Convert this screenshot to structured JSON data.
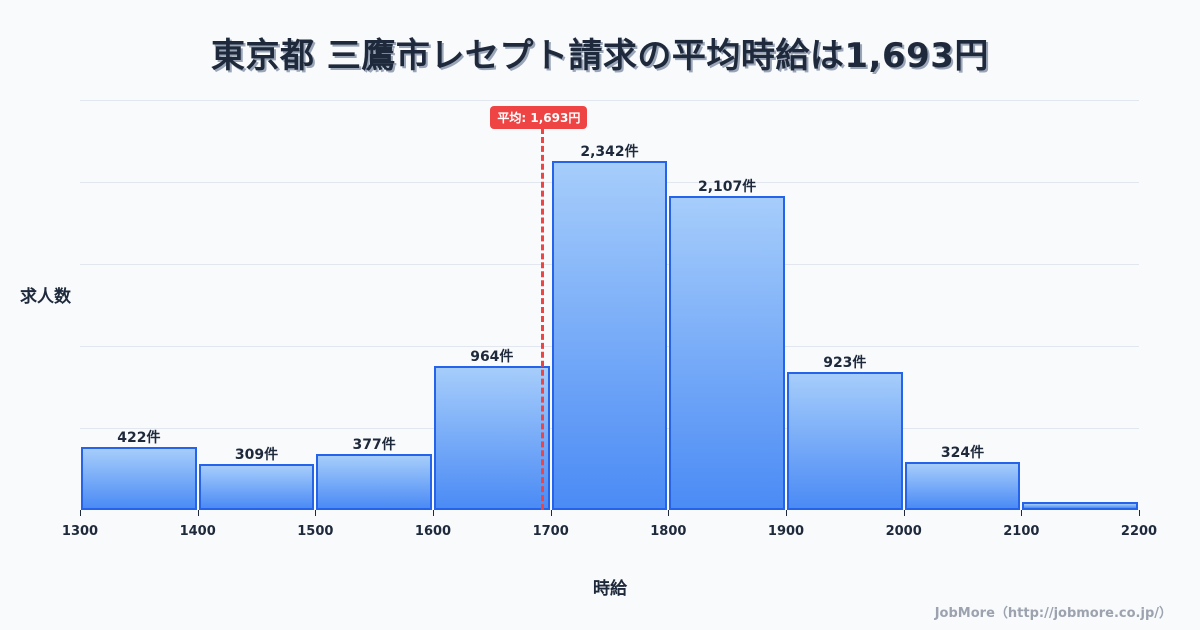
{
  "title": "東京都 三鷹市レセプト請求の平均時給は1,693円",
  "axes": {
    "ylabel": "求人数",
    "xlabel": "時給"
  },
  "mean": {
    "label": "平均: 1,693円",
    "value": 1693,
    "color": "#ef4444"
  },
  "footer": "JobMore（http://jobmore.co.jp/）",
  "colors": {
    "bar_border": "#2563eb",
    "bar_top": "#a6cdfb",
    "bar_bottom": "#4b8bf5",
    "text": "#1e293b",
    "background": "#f8fafc"
  },
  "chart_data": {
    "type": "bar",
    "title": "東京都 三鷹市レセプト請求の平均時給は1,693円",
    "xlabel": "時給",
    "ylabel": "求人数",
    "x_ticks": [
      1300,
      1400,
      1500,
      1600,
      1700,
      1800,
      1900,
      2000,
      2100,
      2200
    ],
    "categories": [
      "1300-1400",
      "1400-1500",
      "1500-1600",
      "1600-1700",
      "1700-1800",
      "1800-1900",
      "1900-2000",
      "2000-2100",
      "2100-2200"
    ],
    "bins": [
      {
        "from": 1300,
        "to": 1400,
        "value": 422,
        "label": "422件"
      },
      {
        "from": 1400,
        "to": 1500,
        "value": 309,
        "label": "309件"
      },
      {
        "from": 1500,
        "to": 1600,
        "value": 377,
        "label": "377件"
      },
      {
        "from": 1600,
        "to": 1700,
        "value": 964,
        "label": "964件"
      },
      {
        "from": 1700,
        "to": 1800,
        "value": 2342,
        "label": "2,342件"
      },
      {
        "from": 1800,
        "to": 1900,
        "value": 2107,
        "label": "2,107件"
      },
      {
        "from": 1900,
        "to": 2000,
        "value": 923,
        "label": "923件"
      },
      {
        "from": 2000,
        "to": 2100,
        "value": 324,
        "label": "324件"
      },
      {
        "from": 2100,
        "to": 2200,
        "value": 54,
        "label": ""
      }
    ],
    "values": [
      422,
      309,
      377,
      964,
      2342,
      2107,
      923,
      324,
      54
    ],
    "xlim": [
      1300,
      2200
    ],
    "ylim": [
      0,
      2750
    ],
    "grid": true,
    "legend": "none",
    "annotations": [
      {
        "type": "vline",
        "x": 1693,
        "label": "平均: 1,693円",
        "style": "dashed",
        "color": "#ef4444"
      }
    ]
  }
}
